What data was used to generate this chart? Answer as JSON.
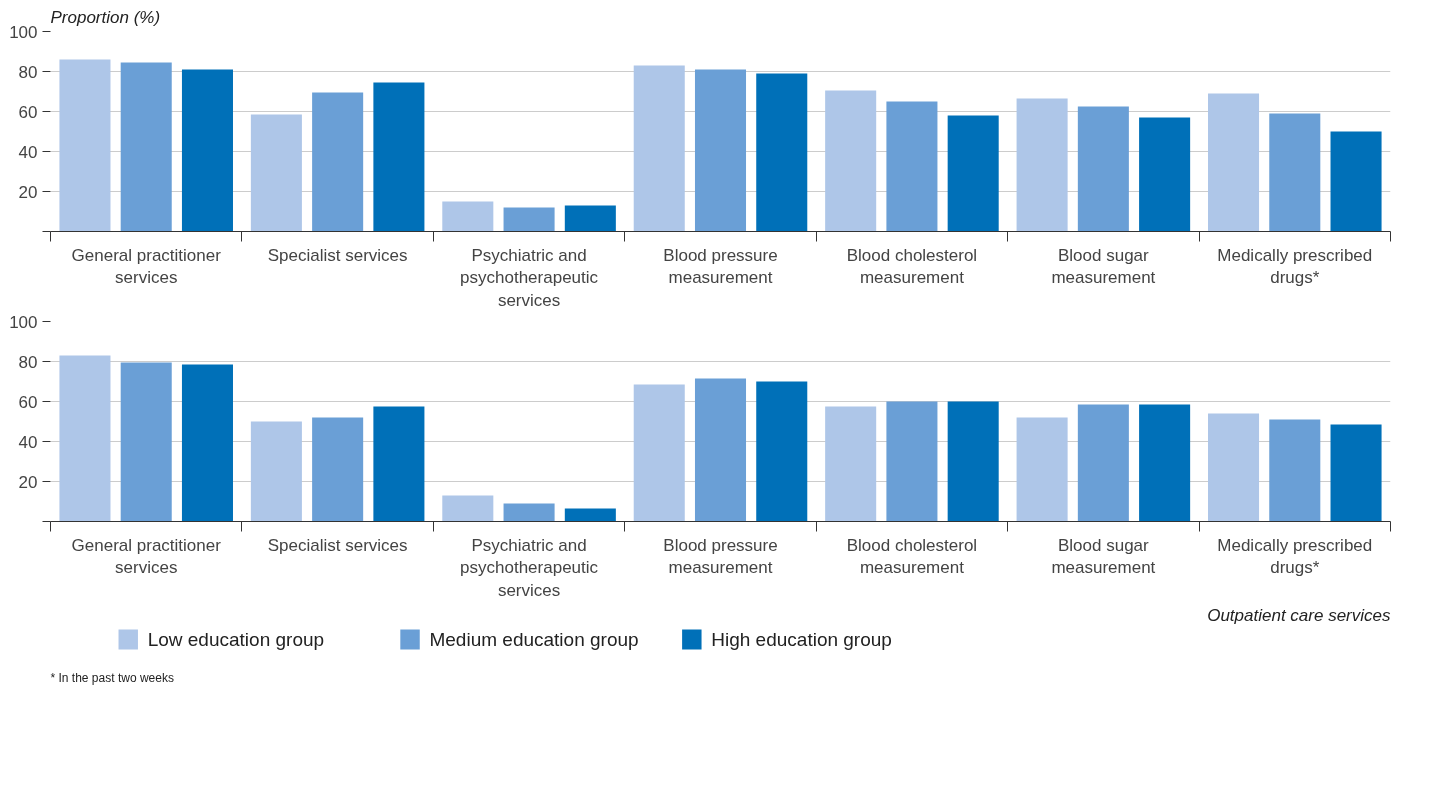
{
  "chart_data": [
    {
      "type": "bar",
      "ylabel": "Proportion (%)",
      "categories": [
        "General practitioner services",
        "Specialist services",
        "Psychiatric and psychotherapeutic services",
        "Blood pressure measurement",
        "Blood cholesterol measurement",
        "Blood sugar measurement",
        "Medically prescribed drugs*"
      ],
      "series": [
        {
          "color": "#aec6e8",
          "values": [
            86,
            58.5,
            15,
            83,
            70.5,
            66.5,
            69
          ]
        },
        {
          "color": "#6a9fd6",
          "values": [
            84.5,
            69.5,
            12,
            81,
            65,
            62.5,
            59
          ]
        },
        {
          "color": "#0070b8",
          "values": [
            81,
            74.5,
            13,
            79,
            58,
            57,
            50
          ]
        }
      ],
      "ylim": [
        0,
        100
      ],
      "yticks": [
        {
          "value": 0,
          "label": null
        },
        20,
        40,
        60,
        80,
        100
      ],
      "grid": "y",
      "legend": false
    },
    {
      "type": "bar",
      "xlabel": "Outpatient care services",
      "annotations": [
        "* In the past two weeks"
      ],
      "categories": [
        "General practitioner services",
        "Specialist services",
        "Psychiatric and psychotherapeutic services",
        "Blood pressure measurement",
        "Blood cholesterol measurement",
        "Blood sugar measurement",
        "Medically prescribed drugs*"
      ],
      "series": [
        {
          "name": "Low education group",
          "color": "#aec6e8",
          "values": [
            83,
            50,
            13,
            68.5,
            57.5,
            52,
            54
          ]
        },
        {
          "name": "Medium education group",
          "color": "#6a9fd6",
          "values": [
            79.5,
            52,
            9,
            71.5,
            60,
            58.5,
            51
          ]
        },
        {
          "name": "High education group",
          "color": "#0070b8",
          "values": [
            78.5,
            57.5,
            6.5,
            70,
            60,
            58.5,
            48.5
          ]
        }
      ],
      "ylim": [
        0,
        100
      ],
      "yticks": [
        {
          "value": 0,
          "label": null
        },
        20,
        40,
        60,
        80,
        100
      ],
      "grid": "y",
      "legend": "bottom"
    }
  ]
}
